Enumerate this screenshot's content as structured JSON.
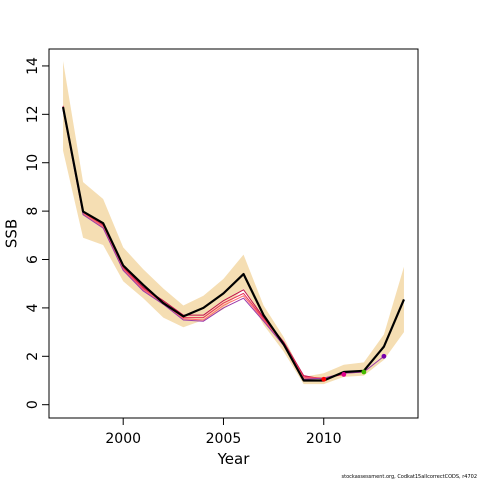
{
  "chart_data": {
    "type": "line",
    "title": "",
    "xlabel": "Year",
    "ylabel": "SSB",
    "xlim": [
      1996.3,
      2014.7
    ],
    "ylim": [
      -0.55,
      14.7
    ],
    "x_ticks": [
      2000,
      2005,
      2010
    ],
    "y_ticks": [
      0,
      2,
      4,
      6,
      8,
      10,
      12,
      14
    ],
    "grid": false,
    "legend": "none",
    "colors": {
      "band": "#f5deb3",
      "main_line": "#000000",
      "retro_lines": [
        "#c0104e",
        "#e8305a",
        "#ff6a6a",
        "#9a3aa8"
      ],
      "endpoints": [
        "#ff0000",
        "#e0008a",
        "#44bb00",
        "#7700aa"
      ]
    },
    "confidence_band": {
      "x": [
        1997,
        1998,
        1999,
        2000,
        2001,
        2002,
        2003,
        2004,
        2005,
        2006,
        2007,
        2008,
        2009,
        2010,
        2011,
        2012,
        2013,
        2014
      ],
      "lower": [
        10.5,
        6.9,
        6.6,
        5.1,
        4.4,
        3.6,
        3.2,
        3.5,
        3.95,
        4.8,
        3.3,
        2.2,
        0.85,
        0.85,
        1.15,
        1.2,
        1.85,
        3.0
      ],
      "upper": [
        14.2,
        9.2,
        8.5,
        6.5,
        5.6,
        4.8,
        4.1,
        4.5,
        5.2,
        6.2,
        4.1,
        2.8,
        1.15,
        1.3,
        1.65,
        1.75,
        2.9,
        5.7
      ]
    },
    "series": [
      {
        "x": [
          1997,
          1998,
          1999,
          2000,
          2001,
          2002,
          2003,
          2004,
          2005,
          2006,
          2007,
          2008,
          2009,
          2010,
          2011,
          2012,
          2013,
          2014
        ],
        "values": [
          12.3,
          7.98,
          7.5,
          5.75,
          4.95,
          4.2,
          3.65,
          4.0,
          4.6,
          5.4,
          3.7,
          2.5,
          1.0,
          1.0,
          1.35,
          1.4,
          2.4,
          4.35
        ]
      },
      {
        "x": [
          1997,
          1998,
          1999,
          2000,
          2001,
          2002,
          2003,
          2004,
          2005,
          2006,
          2007,
          2008,
          2009,
          2010
        ],
        "values": [
          12.35,
          8.0,
          7.45,
          5.7,
          4.85,
          4.3,
          3.7,
          3.7,
          4.3,
          4.75,
          3.6,
          2.6,
          1.2,
          1.05
        ]
      },
      {
        "x": [
          1997,
          1998,
          1999,
          2000,
          2001,
          2002,
          2003,
          2004,
          2005,
          2006,
          2007,
          2008,
          2009,
          2010,
          2011
        ],
        "values": [
          12.3,
          7.95,
          7.4,
          5.65,
          4.8,
          4.25,
          3.6,
          3.6,
          4.2,
          4.6,
          3.55,
          2.55,
          1.15,
          1.1,
          1.25
        ]
      },
      {
        "x": [
          1997,
          1998,
          1999,
          2000,
          2001,
          2002,
          2003,
          2004,
          2005,
          2006,
          2007,
          2008,
          2009,
          2010,
          2011,
          2012
        ],
        "values": [
          12.25,
          7.9,
          7.35,
          5.6,
          4.75,
          4.2,
          3.55,
          3.5,
          4.1,
          4.5,
          3.5,
          2.5,
          1.1,
          1.1,
          1.3,
          1.35
        ]
      },
      {
        "x": [
          1997,
          1998,
          1999,
          2000,
          2001,
          2002,
          2003,
          2004,
          2005,
          2006,
          2007,
          2008,
          2009,
          2010,
          2011,
          2012,
          2013
        ],
        "values": [
          12.2,
          7.85,
          7.3,
          5.55,
          4.7,
          4.15,
          3.5,
          3.45,
          4.0,
          4.4,
          3.45,
          2.45,
          1.05,
          1.1,
          1.3,
          1.35,
          2.0
        ]
      }
    ],
    "endpoints": [
      {
        "x": 2010,
        "y": 1.05
      },
      {
        "x": 2011,
        "y": 1.25
      },
      {
        "x": 2012,
        "y": 1.35
      },
      {
        "x": 2013,
        "y": 2.0
      }
    ]
  },
  "footer": "stockassessment.org, Codkat15allcorrectCODS, r4702"
}
